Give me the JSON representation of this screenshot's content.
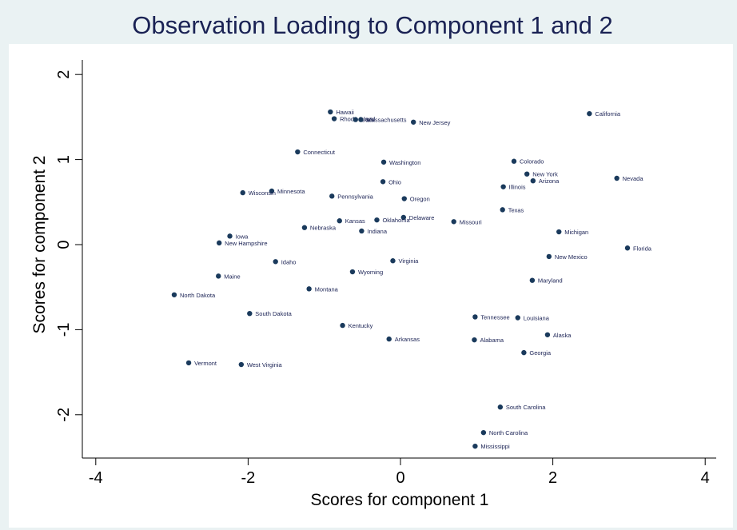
{
  "chart_data": {
    "type": "scatter",
    "title": "Observation Loading to Component 1 and 2",
    "xlabel": "Scores for component 1",
    "ylabel": "Scores for component 2",
    "xlim": [
      -4.2,
      4.2
    ],
    "ylim": [
      -2.5,
      2.1
    ],
    "xticks": [
      -4,
      -2,
      0,
      2,
      4
    ],
    "yticks": [
      -2,
      -1,
      0,
      1,
      2
    ],
    "grid": false,
    "colors": {
      "background": "#eaf2f3",
      "plot_bg": "#ffffff",
      "marker": "#1a3a5c",
      "title": "#1a2254"
    },
    "points": [
      {
        "label": "California",
        "x": 2.48,
        "y": 1.54
      },
      {
        "label": "Hawaii",
        "x": -0.92,
        "y": 1.56
      },
      {
        "label": "Rhode Island",
        "x": -0.87,
        "y": 1.48
      },
      {
        "label": "Utah",
        "x": -0.59,
        "y": 1.47
      },
      {
        "label": "Massachusetts",
        "x": -0.52,
        "y": 1.47
      },
      {
        "label": "New Jersey",
        "x": 0.17,
        "y": 1.44
      },
      {
        "label": "Connecticut",
        "x": -1.35,
        "y": 1.09
      },
      {
        "label": "Washington",
        "x": -0.22,
        "y": 0.97
      },
      {
        "label": "Colorado",
        "x": 1.49,
        "y": 0.98
      },
      {
        "label": "New York",
        "x": 1.66,
        "y": 0.83
      },
      {
        "label": "Nevada",
        "x": 2.84,
        "y": 0.78
      },
      {
        "label": "Arizona",
        "x": 1.74,
        "y": 0.75
      },
      {
        "label": "Ohio",
        "x": -0.23,
        "y": 0.74
      },
      {
        "label": "Illinois",
        "x": 1.35,
        "y": 0.68
      },
      {
        "label": "Minnesota",
        "x": -1.69,
        "y": 0.63
      },
      {
        "label": "Wisconsin",
        "x": -2.07,
        "y": 0.61
      },
      {
        "label": "Pennsylvania",
        "x": -0.9,
        "y": 0.57
      },
      {
        "label": "Oregon",
        "x": 0.05,
        "y": 0.54
      },
      {
        "label": "Texas",
        "x": 1.34,
        "y": 0.41
      },
      {
        "label": "Delaware",
        "x": 0.04,
        "y": 0.32
      },
      {
        "label": "Oklahoma",
        "x": -0.31,
        "y": 0.29
      },
      {
        "label": "Kansas",
        "x": -0.8,
        "y": 0.28
      },
      {
        "label": "Missouri",
        "x": 0.7,
        "y": 0.27
      },
      {
        "label": "Nebraska",
        "x": -1.26,
        "y": 0.2
      },
      {
        "label": "Indiana",
        "x": -0.51,
        "y": 0.16
      },
      {
        "label": "Michigan",
        "x": 2.08,
        "y": 0.15
      },
      {
        "label": "Iowa",
        "x": -2.24,
        "y": 0.1
      },
      {
        "label": "New Hampshire",
        "x": -2.38,
        "y": 0.02
      },
      {
        "label": "Florida",
        "x": 2.98,
        "y": -0.04
      },
      {
        "label": "New Mexico",
        "x": 1.95,
        "y": -0.14
      },
      {
        "label": "Idaho",
        "x": -1.64,
        "y": -0.2
      },
      {
        "label": "Virginia",
        "x": -0.1,
        "y": -0.19
      },
      {
        "label": "Wyoming",
        "x": -0.63,
        "y": -0.32
      },
      {
        "label": "Maine",
        "x": -2.39,
        "y": -0.37
      },
      {
        "label": "Maryland",
        "x": 1.73,
        "y": -0.42
      },
      {
        "label": "Montana",
        "x": -1.2,
        "y": -0.52
      },
      {
        "label": "North Dakota",
        "x": -2.97,
        "y": -0.59
      },
      {
        "label": "South Dakota",
        "x": -1.98,
        "y": -0.81
      },
      {
        "label": "Tennessee",
        "x": 0.98,
        "y": -0.85
      },
      {
        "label": "Louisiana",
        "x": 1.54,
        "y": -0.86
      },
      {
        "label": "Kentucky",
        "x": -0.76,
        "y": -0.95
      },
      {
        "label": "Alaska",
        "x": 1.93,
        "y": -1.06
      },
      {
        "label": "Arkansas",
        "x": -0.15,
        "y": -1.11
      },
      {
        "label": "Alabama",
        "x": 0.97,
        "y": -1.12
      },
      {
        "label": "Georgia",
        "x": 1.62,
        "y": -1.27
      },
      {
        "label": "Vermont",
        "x": -2.78,
        "y": -1.39
      },
      {
        "label": "West Virginia",
        "x": -2.09,
        "y": -1.41
      },
      {
        "label": "South Carolina",
        "x": 1.31,
        "y": -1.91
      },
      {
        "label": "North Carolina",
        "x": 1.09,
        "y": -2.21
      },
      {
        "label": "Mississippi",
        "x": 0.98,
        "y": -2.37
      }
    ]
  }
}
